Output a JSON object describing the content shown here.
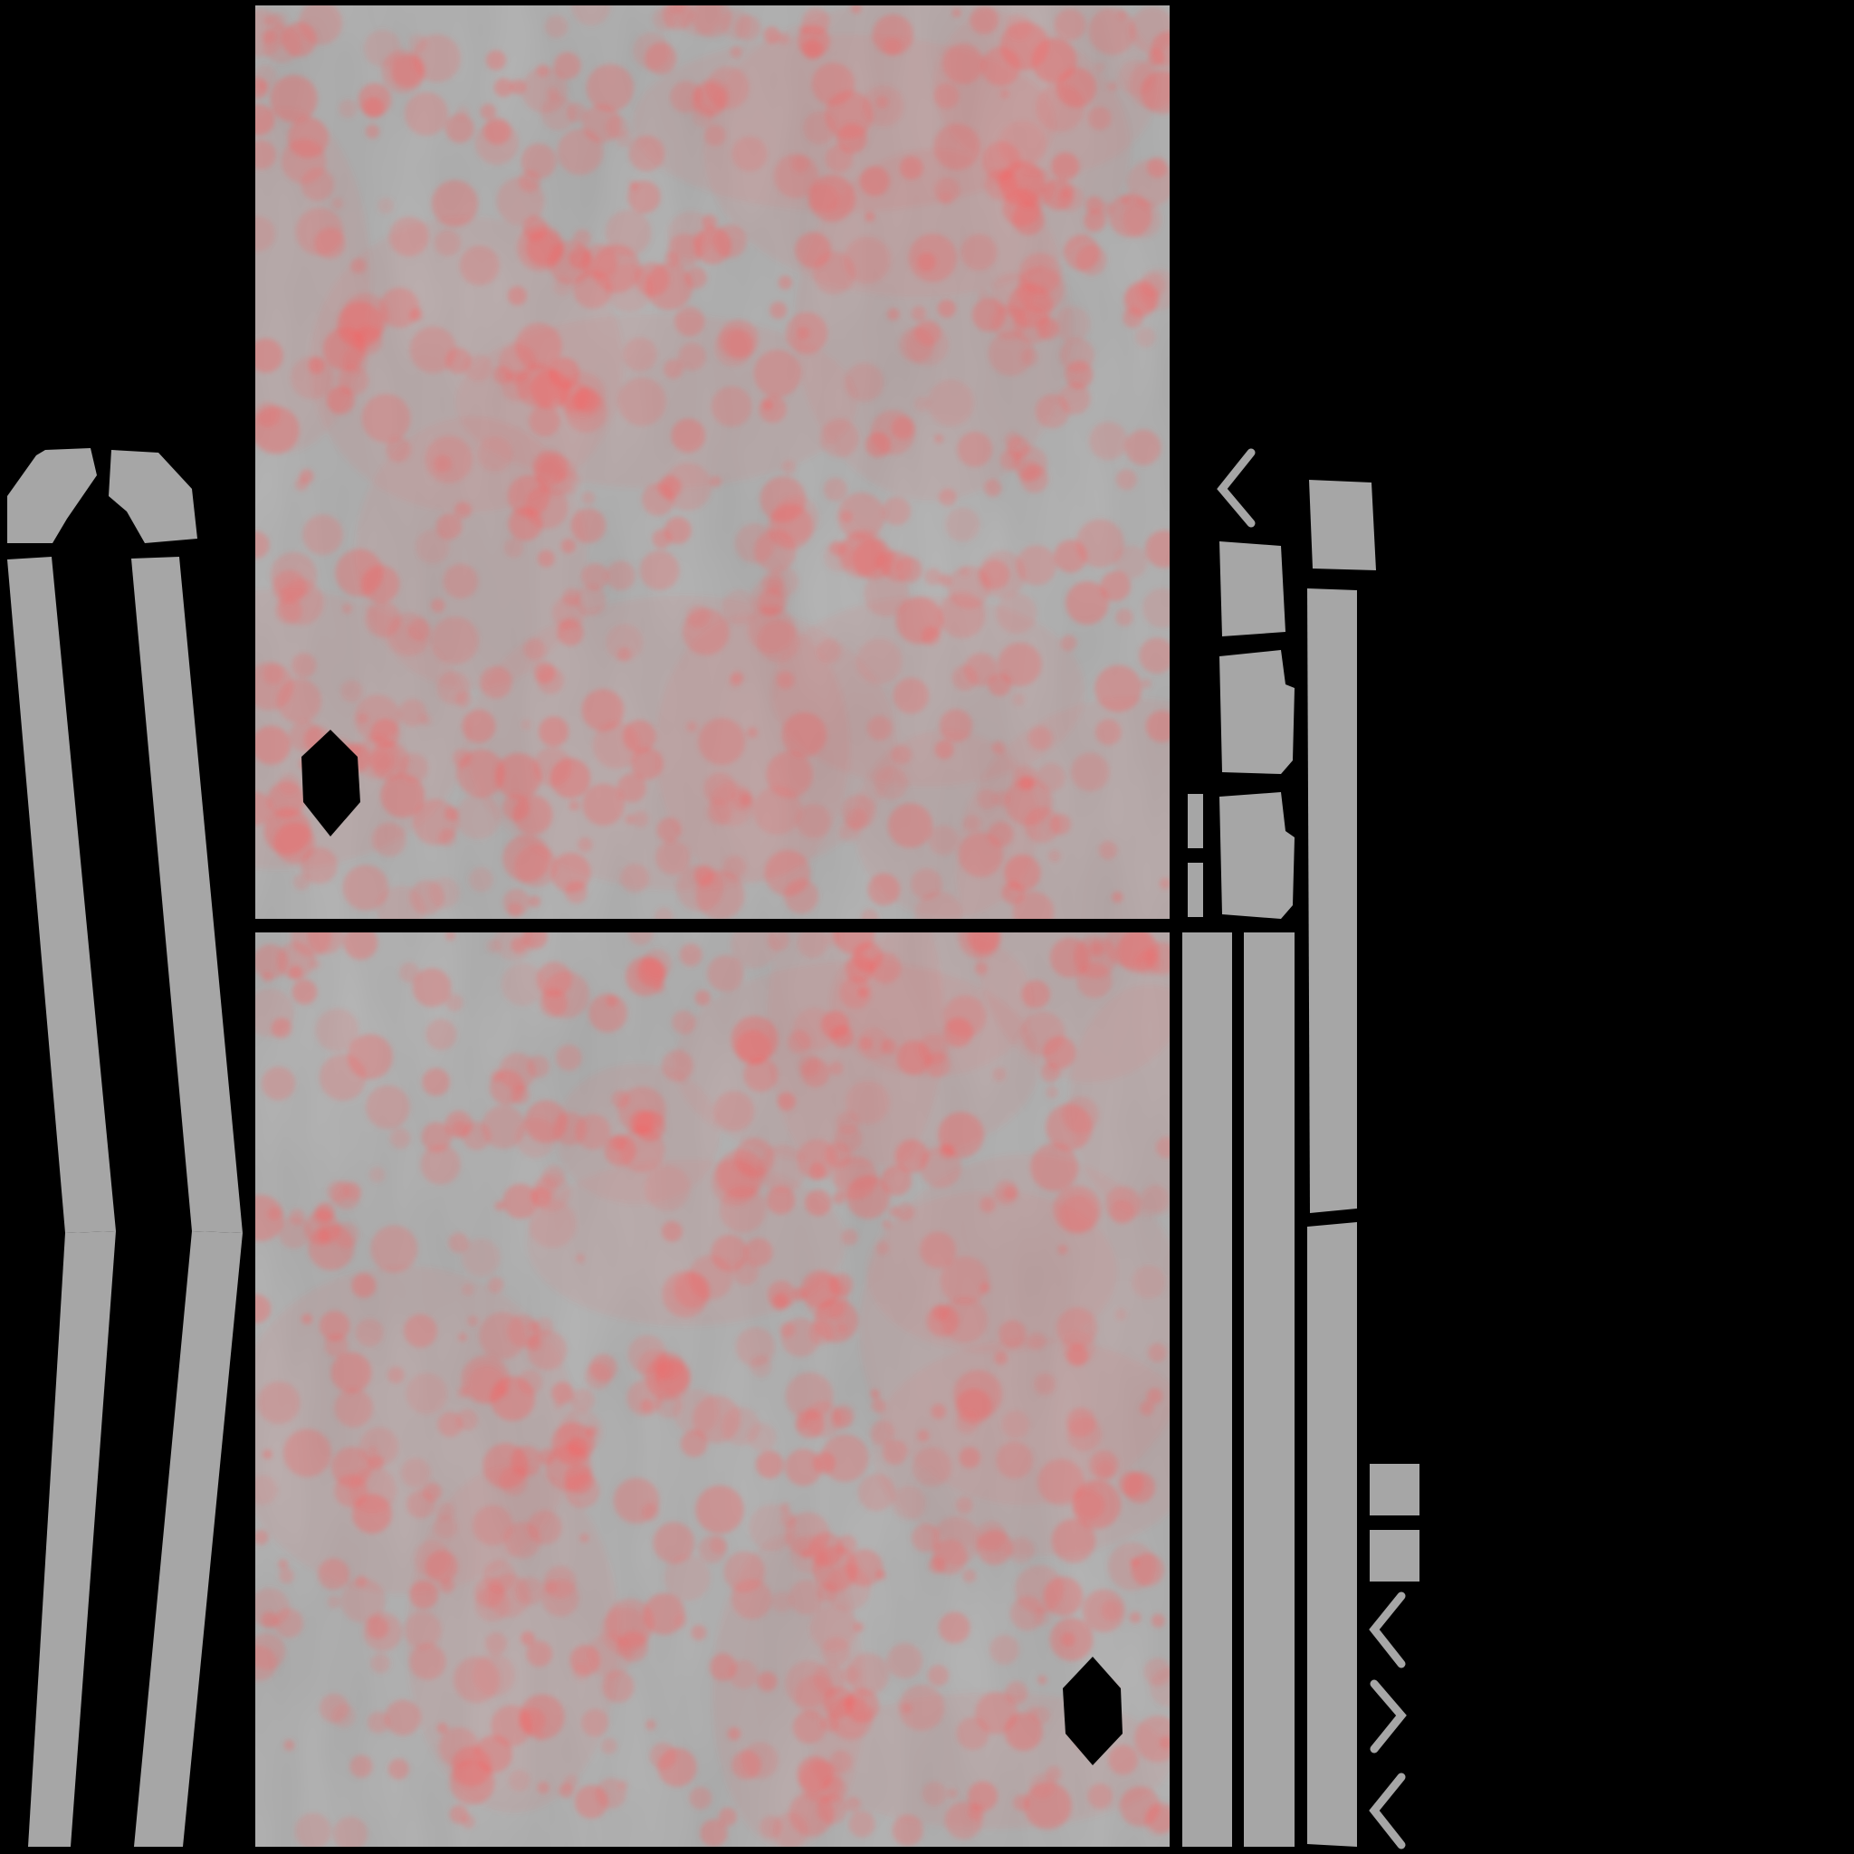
{
  "atlas": {
    "background_color": "#000000",
    "base_color": "#a6a6a6",
    "stain_color": "#ff5a5a",
    "highlight_color": "#d0d0d0"
  },
  "pieces": [
    {
      "kind": "square-panel",
      "icon": "panel-icon"
    },
    {
      "kind": "square-panel",
      "icon": "panel-icon"
    },
    {
      "kind": "bent-strip",
      "icon": "strip-icon"
    },
    {
      "kind": "bent-strip",
      "icon": "strip-icon"
    },
    {
      "kind": "corner-cap",
      "icon": "cap-icon"
    },
    {
      "kind": "corner-cap",
      "icon": "cap-icon"
    },
    {
      "kind": "vertical-strip",
      "icon": "strip-icon"
    },
    {
      "kind": "vertical-strip",
      "icon": "strip-icon"
    },
    {
      "kind": "vertical-strip",
      "icon": "strip-icon"
    },
    {
      "kind": "vertical-strip",
      "icon": "strip-icon"
    },
    {
      "kind": "small-tab",
      "icon": "tab-icon"
    },
    {
      "kind": "small-tab",
      "icon": "tab-icon"
    },
    {
      "kind": "small-tab",
      "icon": "tab-icon"
    },
    {
      "kind": "small-tab",
      "icon": "tab-icon"
    },
    {
      "kind": "square-chip",
      "icon": "chip-icon"
    },
    {
      "kind": "square-chip",
      "icon": "chip-icon"
    },
    {
      "kind": "chevron",
      "icon": "chevron-icon"
    },
    {
      "kind": "chevron",
      "icon": "chevron-icon"
    },
    {
      "kind": "chevron",
      "icon": "chevron-icon"
    },
    {
      "kind": "chevron",
      "icon": "chevron-icon"
    },
    {
      "kind": "hole",
      "icon": "hole-icon"
    },
    {
      "kind": "hole",
      "icon": "hole-icon"
    }
  ]
}
